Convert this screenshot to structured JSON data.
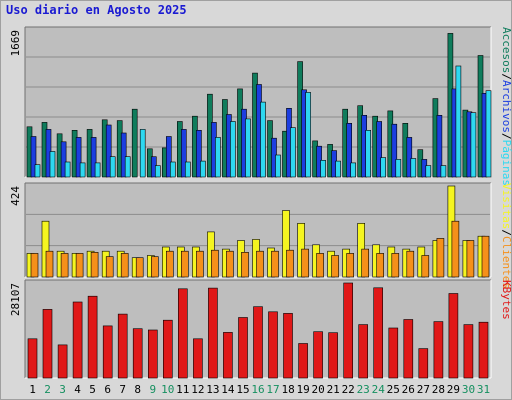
{
  "title": "Uso diario en Agosto 2025",
  "colors": {
    "accesos": "#0f7c5c",
    "archivos": "#1c3ee0",
    "paginas": "#2ed8f0",
    "visitas": "#f5f520",
    "clientes": "#f5901a",
    "kbytes": "#e01818",
    "weekend_label": "#169060",
    "weekday_label": "#000000",
    "plot_bg": "#bebebe"
  },
  "chart_data": {
    "type": "bar",
    "categories": [
      "1",
      "2",
      "3",
      "4",
      "5",
      "6",
      "7",
      "8",
      "9",
      "10",
      "11",
      "12",
      "13",
      "14",
      "15",
      "16",
      "17",
      "18",
      "19",
      "20",
      "21",
      "22",
      "23",
      "24",
      "25",
      "26",
      "27",
      "28",
      "29",
      "30",
      "31"
    ],
    "weekend_days": [
      "2",
      "3",
      "9",
      "10",
      "16",
      "17",
      "23",
      "24",
      "30",
      "31"
    ],
    "panels": [
      {
        "id": "hits",
        "max_label": "1669",
        "ylim": [
          0,
          1669
        ],
        "series": [
          {
            "name": "Accesos",
            "color_key": "accesos",
            "values": [
              570,
              620,
              490,
              530,
              540,
              650,
              640,
              770,
              320,
              330,
              630,
              690,
              940,
              880,
              1000,
              1180,
              640,
              520,
              1310,
              410,
              370,
              770,
              810,
              690,
              750,
              610,
              310,
              890,
              1630,
              760,
              1380
            ]
          },
          {
            "name": "Archivos",
            "color_key": "archivos",
            "values": [
              460,
              540,
              400,
              450,
              450,
              590,
              500,
              0,
              230,
              460,
              540,
              530,
              620,
              710,
              770,
              1050,
              440,
              780,
              990,
              350,
              300,
              610,
              700,
              630,
              600,
              450,
              200,
              700,
              1000,
              740,
              950
            ]
          },
          {
            "name": "Páginas",
            "color_key": "paginas",
            "values": [
              140,
              290,
              170,
              160,
              160,
              230,
              230,
              540,
              130,
              170,
              170,
              180,
              450,
              630,
              660,
              850,
              250,
              560,
              960,
              190,
              180,
              160,
              530,
              220,
              200,
              210,
              130,
              130,
              1260,
              730,
              980
            ]
          }
        ]
      },
      {
        "id": "visits",
        "max_label": "424",
        "ylim": [
          0,
          424
        ],
        "series": [
          {
            "name": "Visitas",
            "color_key": "visitas",
            "values": [
              110,
              260,
              120,
              110,
              120,
              120,
              120,
              90,
              100,
              140,
              140,
              140,
              210,
              130,
              170,
              175,
              135,
              310,
              250,
              150,
              120,
              130,
              250,
              150,
              140,
              130,
              140,
              170,
              424,
              170,
              190
            ]
          },
          {
            "name": "Clientes",
            "color_key": "clientes",
            "values": [
              110,
              120,
              110,
              110,
              115,
              95,
              110,
              90,
              95,
              120,
              120,
              120,
              125,
              120,
              115,
              120,
              120,
              125,
              130,
              110,
              100,
              110,
              130,
              110,
              110,
              120,
              100,
              180,
              260,
              170,
              190
            ]
          }
        ]
      },
      {
        "id": "kbytes",
        "max_label": "28107",
        "ylim": [
          0,
          28107
        ],
        "series": [
          {
            "name": "KBytes",
            "color_key": "kbytes",
            "values": [
              11600,
              20300,
              9800,
              22500,
              24200,
              15400,
              18900,
              14600,
              14200,
              17100,
              26400,
              11600,
              26600,
              13500,
              17900,
              21100,
              19600,
              19100,
              10200,
              13700,
              13400,
              28100,
              15800,
              26700,
              14800,
              17300,
              8700,
              16700,
              25000,
              15800,
              16500
            ]
          }
        ]
      }
    ],
    "right_labels": {
      "hits": [
        {
          "text": "Accesos",
          "color_key": "accesos"
        },
        {
          "text": "/",
          "color_key": "weekday_label"
        },
        {
          "text": "Archivos",
          "color_key": "archivos"
        },
        {
          "text": "/",
          "color_key": "weekday_label"
        },
        {
          "text": "Páginas",
          "color_key": "paginas"
        }
      ],
      "visits": [
        {
          "text": "Visitas",
          "color_key": "visitas"
        },
        {
          "text": "/",
          "color_key": "weekday_label"
        },
        {
          "text": "Clientes",
          "color_key": "clientes"
        }
      ],
      "kbytes": [
        {
          "text": "KBytes",
          "color_key": "kbytes"
        }
      ]
    }
  }
}
